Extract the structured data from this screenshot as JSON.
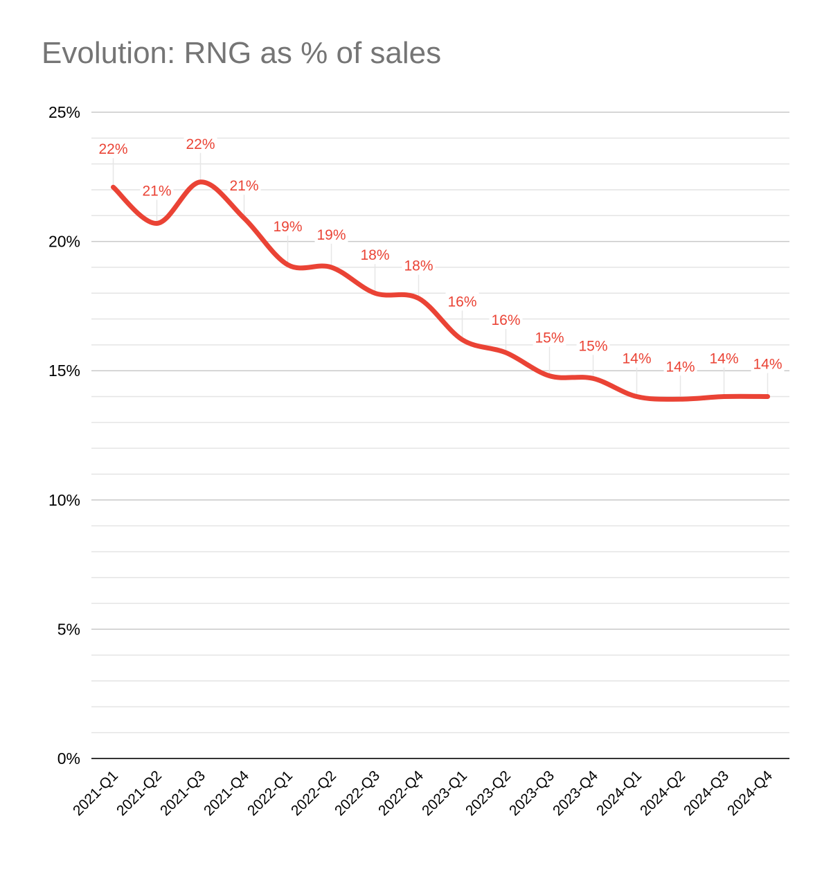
{
  "chart_data": {
    "type": "line",
    "title": "Evolution: RNG as % of sales",
    "categories": [
      "2021-Q1",
      "2021-Q2",
      "2021-Q3",
      "2021-Q4",
      "2022-Q1",
      "2022-Q2",
      "2022-Q3",
      "2022-Q4",
      "2023-Q1",
      "2023-Q2",
      "2023-Q3",
      "2023-Q4",
      "2024-Q1",
      "2024-Q2",
      "2024-Q3",
      "2024-Q4"
    ],
    "series": [
      {
        "values": [
          22.1,
          20.7,
          22.3,
          20.9,
          19.1,
          19.0,
          18.0,
          17.8,
          16.2,
          15.7,
          14.8,
          14.7,
          14.0,
          13.9,
          14.0,
          14.0
        ],
        "data_labels": [
          "22%",
          "21%",
          "22%",
          "21%",
          "19%",
          "19%",
          "18%",
          "18%",
          "16%",
          "16%",
          "15%",
          "15%",
          "14%",
          "14%",
          "14%",
          "14%"
        ],
        "color": "#ea4335"
      }
    ],
    "ylim": [
      0,
      25
    ],
    "yticks": [
      0,
      5,
      10,
      15,
      20,
      25
    ],
    "ytick_labels": [
      "0%",
      "5%",
      "10%",
      "15%",
      "20%",
      "25%"
    ],
    "minor_gridlines": true,
    "smooth": true,
    "legend": "none",
    "colors": {
      "line": "#ea4335",
      "major_grid": "#c8c8c8",
      "minor_grid": "#e4e4e4",
      "axis": "#333333"
    }
  }
}
